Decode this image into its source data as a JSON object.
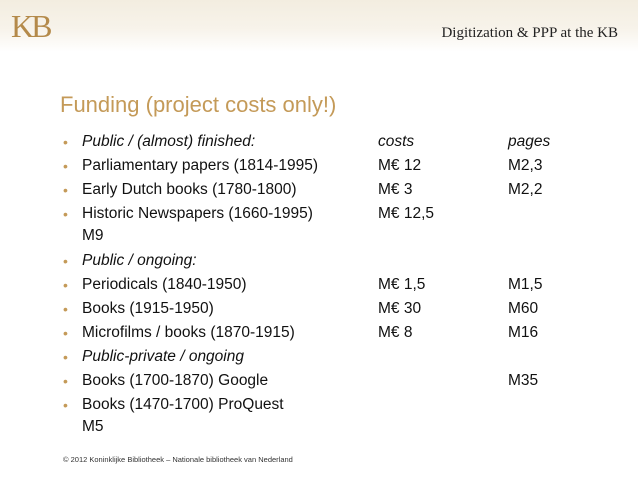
{
  "header": {
    "logo": "KB",
    "title": "Digitization & PPP at the KB"
  },
  "slide": {
    "title": "Funding (project costs only!)",
    "bullet_glyph": "•",
    "rows": [
      {
        "name": "Public / (almost) finished:",
        "costs": "costs",
        "pages": "pages",
        "wrap": ""
      },
      {
        "name": "Parliamentary papers (1814-1995)",
        "costs": "M€ 12",
        "pages": "M2,3",
        "wrap": ""
      },
      {
        "name": "Early Dutch books (1780-1800)",
        "costs": "M€ 3",
        "pages": "M2,2",
        "wrap": ""
      },
      {
        "name": "Historic Newspapers (1660-1995)",
        "costs": "M€ 12,5",
        "pages": "",
        "wrap": "M9"
      },
      {
        "name": "Public / ongoing:",
        "costs": "",
        "pages": "",
        "wrap": ""
      },
      {
        "name": "Periodicals (1840-1950)",
        "costs": "M€ 1,5",
        "pages": "M1,5",
        "wrap": ""
      },
      {
        "name": "Books (1915-1950)",
        "costs": "M€ 30",
        "pages": "M60",
        "wrap": ""
      },
      {
        "name": "Microfilms / books (1870-1915)",
        "costs": "M€ 8",
        "pages": "M16",
        "wrap": ""
      },
      {
        "name": "Public-private / ongoing",
        "costs": "",
        "pages": "",
        "wrap": ""
      },
      {
        "name": "Books (1700-1870) Google",
        "costs": "",
        "pages": "M35",
        "wrap": ""
      },
      {
        "name": "Books (1470-1700) ProQuest",
        "costs": "",
        "pages": "",
        "wrap": "M5"
      }
    ]
  },
  "footer": {
    "copyright": "© 2012 Koninklijke Bibliotheek – Nationale bibliotheek van Nederland"
  },
  "colors": {
    "accent": "#c49a58",
    "logo": "#b48a4a",
    "text": "#111111"
  }
}
